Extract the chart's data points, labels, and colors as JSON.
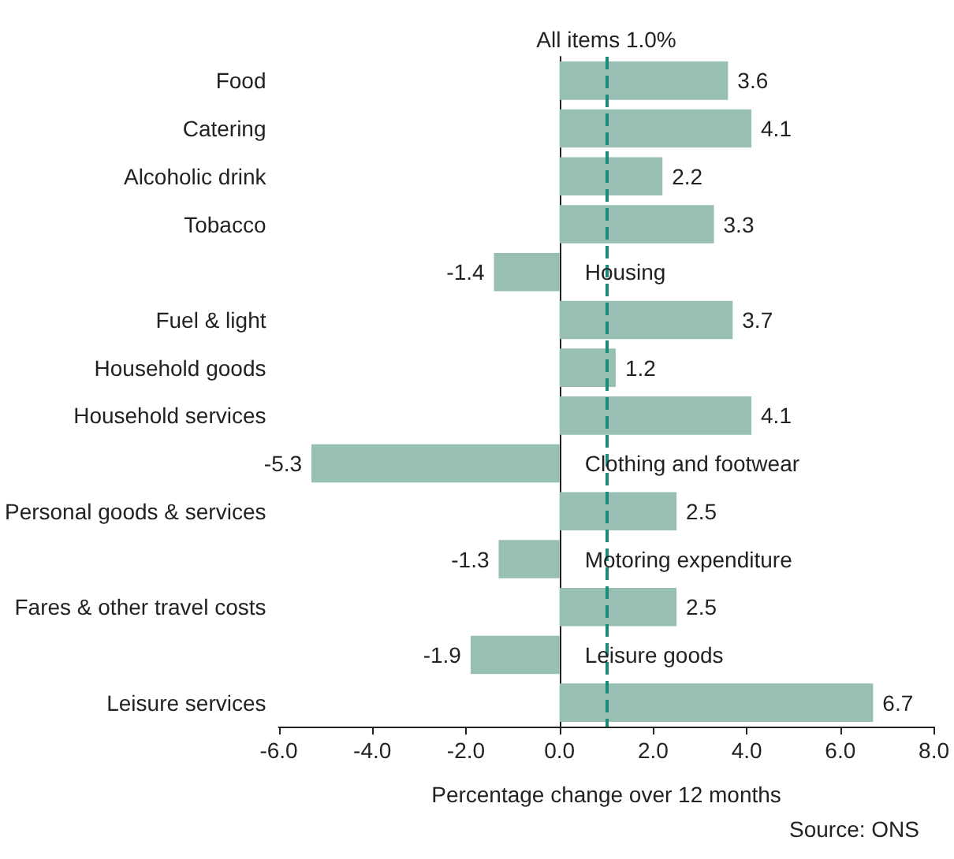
{
  "chart_data": {
    "type": "bar",
    "orientation": "horizontal",
    "categories": [
      "Food",
      "Catering",
      "Alcoholic drink",
      "Tobacco",
      "Housing",
      "Fuel & light",
      "Household goods",
      "Household services",
      "Clothing and footwear",
      "Personal goods & services",
      "Motoring expenditure",
      "Fares & other travel costs",
      "Leisure goods",
      "Leisure services"
    ],
    "values": [
      3.6,
      4.1,
      2.2,
      3.3,
      -1.4,
      3.7,
      1.2,
      4.1,
      -5.3,
      2.5,
      -1.3,
      2.5,
      -1.9,
      6.7
    ],
    "color": "#97bfb4",
    "xlim": [
      -6,
      8
    ],
    "xticks": [
      {
        "value": -6,
        "label": "-6.0"
      },
      {
        "value": -4,
        "label": "-4.0"
      },
      {
        "value": -2,
        "label": "-2.0"
      },
      {
        "value": 0,
        "label": "0.0"
      },
      {
        "value": 2,
        "label": "2.0"
      },
      {
        "value": 4,
        "label": "4.0"
      },
      {
        "value": 6,
        "label": "6.0"
      },
      {
        "value": 8,
        "label": "8.0"
      }
    ],
    "xlabel": "Percentage change over 12 months",
    "data_labels": true,
    "ref_lines": [
      {
        "axis": "x",
        "value": 1.0,
        "label": "All items 1.0%",
        "color": "#1a8a7a",
        "line_style": "dashed"
      }
    ],
    "annotations": [
      "Source: ONS"
    ]
  }
}
